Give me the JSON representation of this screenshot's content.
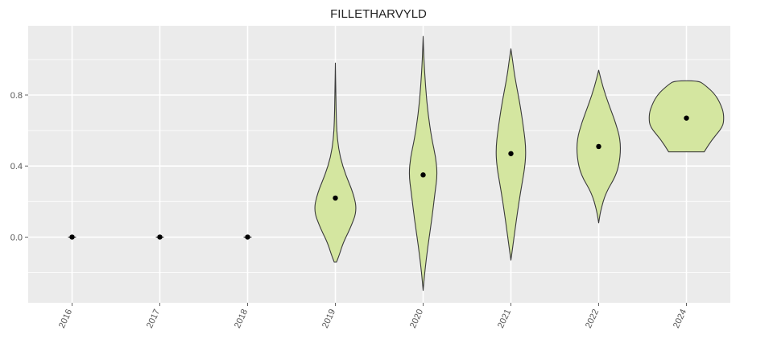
{
  "chart_data": {
    "type": "violin",
    "title": "FILLETHARVYLD",
    "xlabel": "",
    "ylabel": "",
    "categories": [
      "2016",
      "2017",
      "2018",
      "2019",
      "2020",
      "2021",
      "2022",
      "2024"
    ],
    "y_ticks": [
      "0.0",
      "0.4",
      "0.8"
    ],
    "y_tick_values": [
      0.0,
      0.4,
      0.8
    ],
    "ylim": [
      -0.37,
      1.19
    ],
    "grid": true,
    "colors": {
      "fill": "#d4e6a0",
      "outline": "#3a3a3a",
      "panel": "#ebebeb",
      "grid": "#ffffff",
      "point": "#000000"
    },
    "series": [
      {
        "category": "2016",
        "median": 0.0,
        "profile": [
          [
            0.0,
            0.1
          ]
        ]
      },
      {
        "category": "2017",
        "median": 0.0,
        "profile": [
          [
            0.0,
            0.1
          ]
        ]
      },
      {
        "category": "2018",
        "median": 0.0,
        "profile": [
          [
            0.0,
            0.1
          ]
        ]
      },
      {
        "category": "2019",
        "median": 0.22,
        "profile": [
          [
            -0.14,
            0.03
          ],
          [
            -0.1,
            0.1
          ],
          [
            -0.03,
            0.2
          ],
          [
            0.05,
            0.38
          ],
          [
            0.15,
            0.55
          ],
          [
            0.25,
            0.45
          ],
          [
            0.35,
            0.26
          ],
          [
            0.45,
            0.12
          ],
          [
            0.55,
            0.05
          ],
          [
            0.65,
            0.025
          ],
          [
            0.8,
            0.012
          ],
          [
            0.98,
            0.0
          ]
        ]
      },
      {
        "category": "2020",
        "median": 0.35,
        "profile": [
          [
            -0.3,
            0.0
          ],
          [
            -0.2,
            0.04
          ],
          [
            -0.05,
            0.12
          ],
          [
            0.1,
            0.22
          ],
          [
            0.25,
            0.3
          ],
          [
            0.35,
            0.36
          ],
          [
            0.45,
            0.32
          ],
          [
            0.55,
            0.22
          ],
          [
            0.7,
            0.12
          ],
          [
            0.85,
            0.06
          ],
          [
            1.0,
            0.02
          ],
          [
            1.13,
            0.0
          ]
        ]
      },
      {
        "category": "2021",
        "median": 0.47,
        "profile": [
          [
            -0.13,
            0.0
          ],
          [
            -0.05,
            0.05
          ],
          [
            0.1,
            0.14
          ],
          [
            0.25,
            0.24
          ],
          [
            0.4,
            0.36
          ],
          [
            0.5,
            0.38
          ],
          [
            0.6,
            0.33
          ],
          [
            0.75,
            0.23
          ],
          [
            0.9,
            0.1
          ],
          [
            1.0,
            0.04
          ],
          [
            1.06,
            0.0
          ]
        ]
      },
      {
        "category": "2022",
        "median": 0.51,
        "profile": [
          [
            0.08,
            0.0
          ],
          [
            0.15,
            0.05
          ],
          [
            0.25,
            0.18
          ],
          [
            0.35,
            0.45
          ],
          [
            0.45,
            0.55
          ],
          [
            0.55,
            0.55
          ],
          [
            0.65,
            0.42
          ],
          [
            0.75,
            0.25
          ],
          [
            0.85,
            0.1
          ],
          [
            0.94,
            0.0
          ]
        ]
      },
      {
        "category": "2024",
        "median": 0.67,
        "profile": [
          [
            0.48,
            0.45
          ],
          [
            0.55,
            0.65
          ],
          [
            0.62,
            0.92
          ],
          [
            0.67,
            0.95
          ],
          [
            0.72,
            0.92
          ],
          [
            0.8,
            0.75
          ],
          [
            0.86,
            0.45
          ],
          [
            0.88,
            0.3
          ]
        ]
      }
    ]
  }
}
